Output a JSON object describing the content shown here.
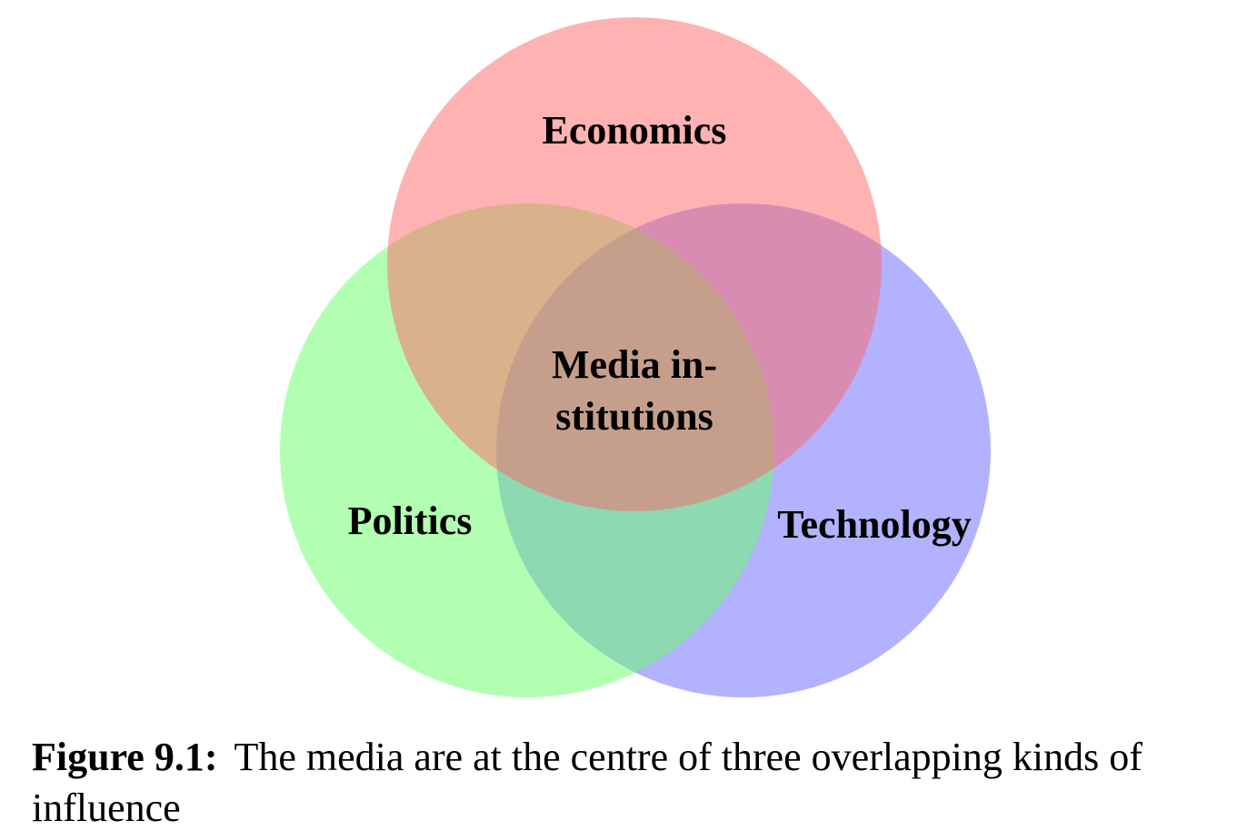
{
  "diagram": {
    "type": "venn",
    "sets": [
      {
        "id": "economics",
        "label": "Economics",
        "color": "#ff6666",
        "opacity": 0.5
      },
      {
        "id": "politics",
        "label": "Politics",
        "color": "#66ff66",
        "opacity": 0.5
      },
      {
        "id": "technology",
        "label": "Technology",
        "color": "#6666ff",
        "opacity": 0.5
      }
    ],
    "center": {
      "label_lines": [
        "Media in-",
        "stitutions"
      ]
    }
  },
  "caption": {
    "label": "Figure 9.1:",
    "text": "The media are at the centre of three overlapping kinds of influence"
  }
}
